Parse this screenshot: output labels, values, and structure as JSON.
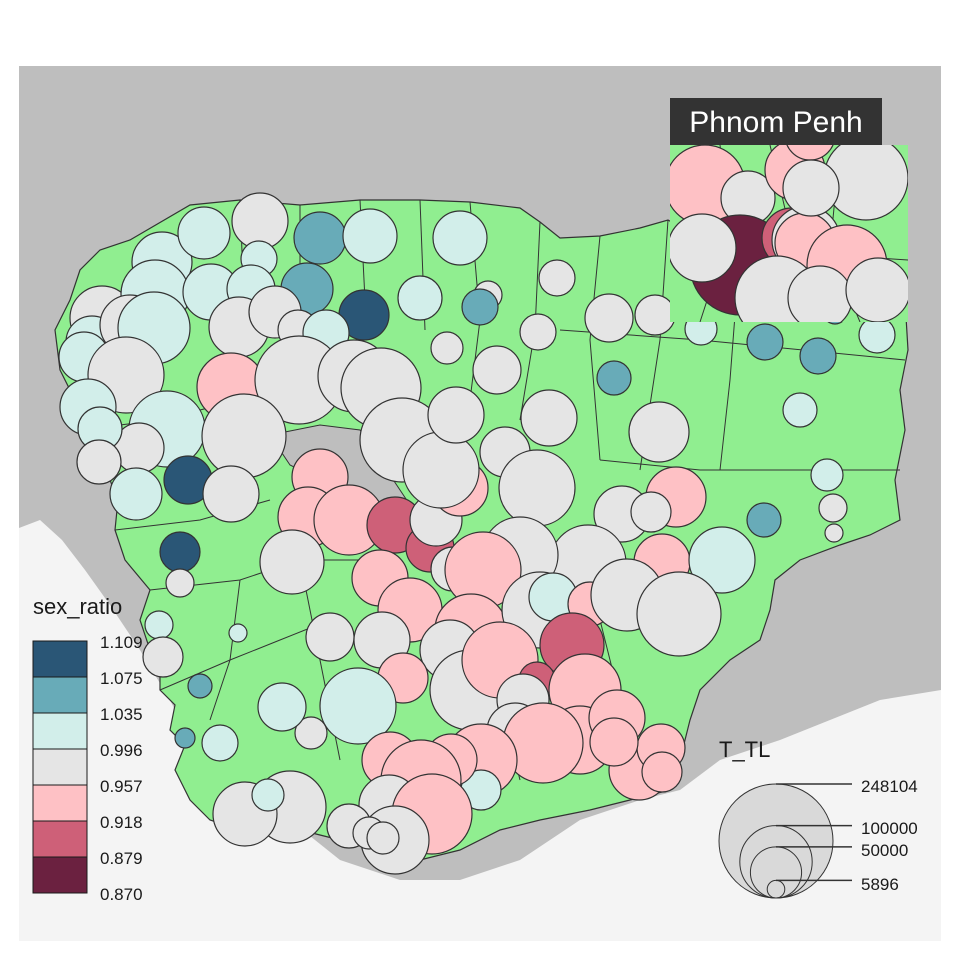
{
  "map": {
    "colors": {
      "background": "#bebebe",
      "sea": "#f4f4f4",
      "land": "#90ee90",
      "lake": "#bebebe",
      "border": "#333333",
      "circle_stroke": "#333333",
      "inset_header": "#333333"
    }
  },
  "inset": {
    "title": "Phnom Penh"
  },
  "legend_color": {
    "title": "sex_ratio",
    "labels": [
      "1.109",
      "1.075",
      "1.035",
      "0.996",
      "0.957",
      "0.918",
      "0.879",
      "0.870"
    ],
    "colors": [
      "#2a5676",
      "#68abb8",
      "#d2eeea",
      "#e5e5e5",
      "#fec1c5",
      "#ce6078",
      "#6b2140"
    ]
  },
  "legend_size": {
    "title": "T_TL",
    "values": [
      248104,
      100000,
      50000,
      5896
    ],
    "labels": [
      "248104",
      "100000",
      "50000",
      "5896"
    ]
  }
}
